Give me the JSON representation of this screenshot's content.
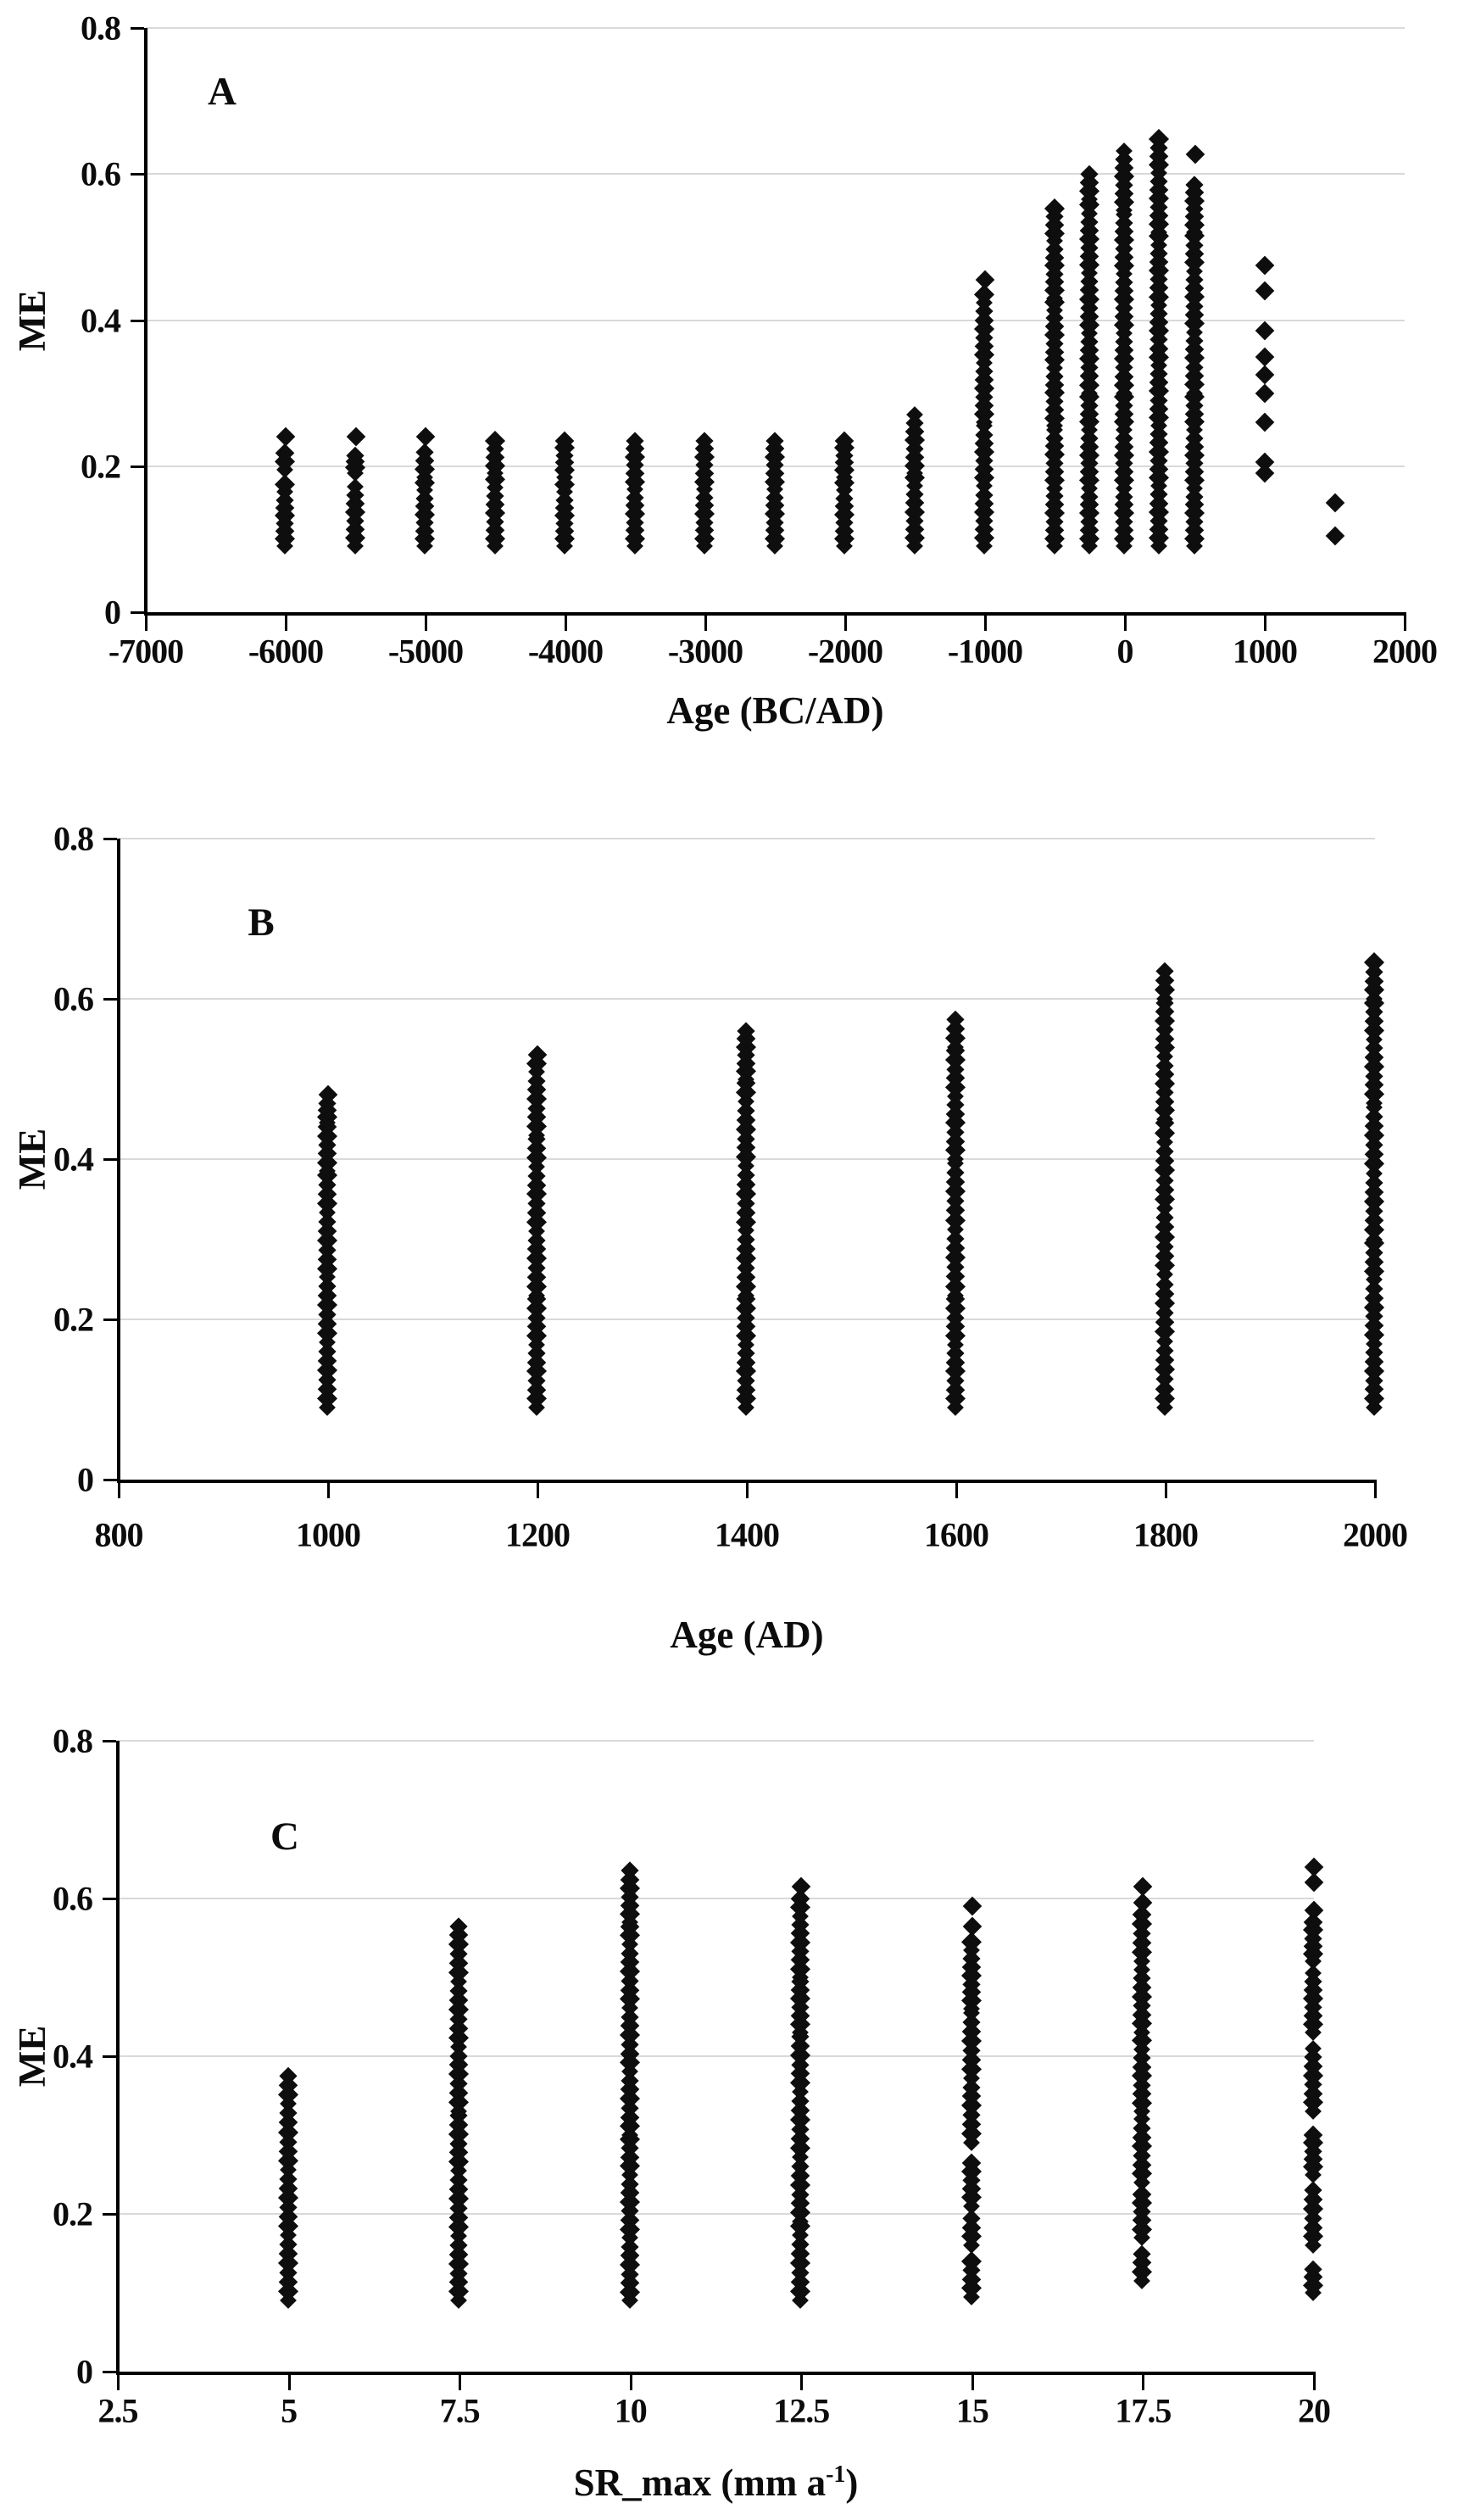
{
  "figure": {
    "background": "#ffffff",
    "marker_color": "#0e0e0e",
    "grid_color": "#d9d9d9",
    "axis_color": "#000000",
    "marker_shape": "diamond"
  },
  "chart_data": [
    {
      "panel": "A",
      "type": "scatter",
      "xlabel": {
        "text": "Age (BC/AD)"
      },
      "ylabel": "ME",
      "xlim": [
        -7000,
        2000
      ],
      "ylim": [
        0,
        0.8
      ],
      "grid": true,
      "legend": "none",
      "xticks": [
        -7000,
        -6000,
        -5000,
        -4000,
        -3000,
        -2000,
        -1000,
        0,
        1000,
        2000
      ],
      "xtick_labels": [
        "-7000",
        "-6000",
        "-5000",
        "-4000",
        "-3000",
        "-2000",
        "-1000",
        "0",
        "1000",
        "2000"
      ],
      "yticks": [
        0,
        0.2,
        0.4,
        0.6,
        0.8
      ],
      "ytick_labels": [
        "0",
        "0.2",
        "0.4",
        "0.6",
        "0.8"
      ],
      "columns": [
        {
          "x": -6000,
          "dots": [
            0.24
          ],
          "segments": [
            [
              0.195,
              0.218
            ],
            [
              0.09,
              0.175
            ]
          ]
        },
        {
          "x": -5500,
          "dots": [
            0.24
          ],
          "segments": [
            [
              0.19,
              0.215
            ],
            [
              0.09,
              0.172
            ]
          ]
        },
        {
          "x": -5000,
          "dots": [
            0.24
          ],
          "segments": [
            [
              0.185,
              0.22
            ],
            [
              0.09,
              0.178
            ]
          ]
        },
        {
          "x": -4500,
          "dots": [],
          "segments": [
            [
              0.19,
              0.235
            ],
            [
              0.09,
              0.182
            ]
          ]
        },
        {
          "x": -4000,
          "dots": [],
          "segments": [
            [
              0.185,
              0.235
            ],
            [
              0.09,
              0.175
            ]
          ]
        },
        {
          "x": -3500,
          "dots": [],
          "segments": [
            [
              0.09,
              0.235
            ]
          ]
        },
        {
          "x": -3000,
          "dots": [],
          "segments": [
            [
              0.09,
              0.235
            ]
          ]
        },
        {
          "x": -2500,
          "dots": [],
          "segments": [
            [
              0.09,
              0.235
            ]
          ]
        },
        {
          "x": -2000,
          "dots": [],
          "segments": [
            [
              0.185,
              0.235
            ],
            [
              0.09,
              0.178
            ]
          ]
        },
        {
          "x": -1500,
          "dots": [],
          "segments": [
            [
              0.19,
              0.27
            ],
            [
              0.09,
              0.185
            ]
          ]
        },
        {
          "x": -1000,
          "dots": [
            0.455
          ],
          "segments": [
            [
              0.26,
              0.435
            ],
            [
              0.09,
              0.255
            ]
          ]
        },
        {
          "x": -500,
          "dots": [],
          "segments": [
            [
              0.43,
              0.553
            ],
            [
              0.255,
              0.425
            ],
            [
              0.09,
              0.25
            ]
          ]
        },
        {
          "x": -250,
          "dots": [],
          "segments": [
            [
              0.565,
              0.6
            ],
            [
              0.3,
              0.558
            ],
            [
              0.09,
              0.295
            ]
          ]
        },
        {
          "x": 0,
          "dots": [],
          "segments": [
            [
              0.55,
              0.632
            ],
            [
              0.3,
              0.545
            ],
            [
              0.09,
              0.295
            ]
          ]
        },
        {
          "x": 250,
          "dots": [],
          "segments": [
            [
              0.52,
              0.648
            ],
            [
              0.09,
              0.515
            ]
          ]
        },
        {
          "x": 500,
          "dots": [
            0.627
          ],
          "segments": [
            [
              0.52,
              0.585
            ],
            [
              0.3,
              0.515
            ],
            [
              0.09,
              0.295
            ]
          ]
        },
        {
          "x": 1000,
          "dots": [
            0.475,
            0.44,
            0.385,
            0.35,
            0.325,
            0.3,
            0.26,
            0.205,
            0.19
          ],
          "segments": []
        },
        {
          "x": 1500,
          "dots": [
            0.15,
            0.105
          ],
          "segments": []
        }
      ]
    },
    {
      "panel": "B",
      "type": "scatter",
      "xlabel": {
        "text": "Age (AD)"
      },
      "ylabel": "ME",
      "xlim": [
        800,
        2000
      ],
      "ylim": [
        0,
        0.8
      ],
      "grid": true,
      "legend": "none",
      "xticks": [
        800,
        1000,
        1200,
        1400,
        1600,
        1800,
        2000
      ],
      "xtick_labels": [
        "800",
        "1000",
        "1200",
        "1400",
        "1600",
        "1800",
        "2000"
      ],
      "yticks": [
        0,
        0.2,
        0.4,
        0.6,
        0.8
      ],
      "ytick_labels": [
        "0",
        "0.2",
        "0.4",
        "0.6",
        "0.8"
      ],
      "columns": [
        {
          "x": 1000,
          "dots": [
            0.48
          ],
          "segments": [
            [
              0.445,
              0.47
            ],
            [
              0.385,
              0.44
            ],
            [
              0.09,
              0.38
            ]
          ]
        },
        {
          "x": 1200,
          "dots": [
            0.53
          ],
          "segments": [
            [
              0.43,
              0.52
            ],
            [
              0.23,
              0.425
            ],
            [
              0.09,
              0.225
            ]
          ]
        },
        {
          "x": 1400,
          "dots": [],
          "segments": [
            [
              0.5,
              0.56
            ],
            [
              0.23,
              0.495
            ],
            [
              0.09,
              0.225
            ]
          ]
        },
        {
          "x": 1600,
          "dots": [],
          "segments": [
            [
              0.54,
              0.575
            ],
            [
              0.4,
              0.535
            ],
            [
              0.23,
              0.395
            ],
            [
              0.09,
              0.225
            ]
          ]
        },
        {
          "x": 1800,
          "dots": [],
          "segments": [
            [
              0.6,
              0.635
            ],
            [
              0.45,
              0.595
            ],
            [
              0.09,
              0.445
            ]
          ]
        },
        {
          "x": 2000,
          "dots": [],
          "segments": [
            [
              0.6,
              0.645
            ],
            [
              0.47,
              0.595
            ],
            [
              0.3,
              0.465
            ],
            [
              0.09,
              0.295
            ]
          ]
        }
      ]
    },
    {
      "panel": "C",
      "type": "scatter",
      "xlabel": {
        "text": "SR_max (mm a",
        "sup": "-1",
        "after": ")"
      },
      "ylabel": "ME",
      "xlim": [
        2.5,
        20
      ],
      "ylim": [
        0,
        0.8
      ],
      "grid": true,
      "legend": "none",
      "xticks": [
        2.5,
        5,
        7.5,
        10,
        12.5,
        15,
        17.5,
        20
      ],
      "xtick_labels": [
        "2.5",
        "5",
        "7.5",
        "10",
        "12.5",
        "15",
        "17.5",
        "20"
      ],
      "yticks": [
        0,
        0.2,
        0.4,
        0.6,
        0.8
      ],
      "ytick_labels": [
        "0",
        "0.2",
        "0.4",
        "0.6",
        "0.8"
      ],
      "columns": [
        {
          "x": 5,
          "dots": [],
          "segments": [
            [
              0.09,
              0.375
            ]
          ]
        },
        {
          "x": 7.5,
          "dots": [],
          "segments": [
            [
              0.33,
              0.565
            ],
            [
              0.09,
              0.325
            ]
          ]
        },
        {
          "x": 10,
          "dots": [],
          "segments": [
            [
              0.57,
              0.635
            ],
            [
              0.3,
              0.565
            ],
            [
              0.09,
              0.295
            ]
          ]
        },
        {
          "x": 12.5,
          "dots": [
            0.615
          ],
          "segments": [
            [
              0.5,
              0.6
            ],
            [
              0.43,
              0.495
            ],
            [
              0.19,
              0.425
            ],
            [
              0.09,
              0.185
            ]
          ]
        },
        {
          "x": 15,
          "dots": [
            0.59,
            0.565
          ],
          "segments": [
            [
              0.46,
              0.545
            ],
            [
              0.29,
              0.455
            ],
            [
              0.21,
              0.265
            ],
            [
              0.16,
              0.195
            ],
            [
              0.095,
              0.14
            ]
          ]
        },
        {
          "x": 17.5,
          "dots": [
            0.615,
            0.595
          ],
          "segments": [
            [
              0.52,
              0.58
            ],
            [
              0.43,
              0.51
            ],
            [
              0.33,
              0.42
            ],
            [
              0.24,
              0.32
            ],
            [
              0.17,
              0.225
            ],
            [
              0.115,
              0.15
            ]
          ]
        },
        {
          "x": 20,
          "dots": [
            0.64,
            0.62,
            0.585
          ],
          "segments": [
            [
              0.52,
              0.57
            ],
            [
              0.43,
              0.505
            ],
            [
              0.33,
              0.41
            ],
            [
              0.25,
              0.3
            ],
            [
              0.16,
              0.23
            ],
            [
              0.1,
              0.13
            ]
          ]
        }
      ]
    }
  ]
}
